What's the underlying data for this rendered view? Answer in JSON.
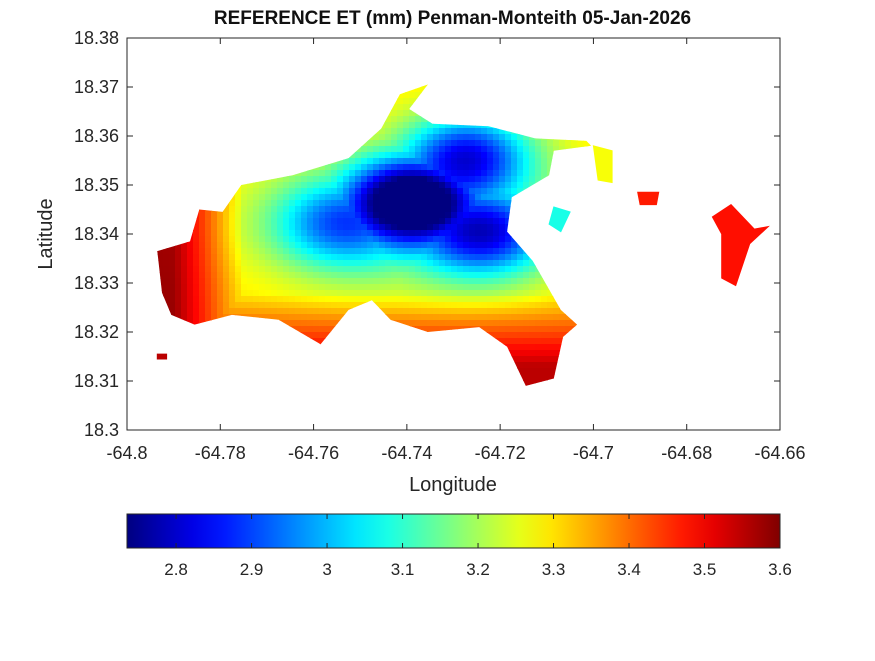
{
  "chart_data": {
    "type": "heatmap",
    "title": "REFERENCE ET (mm) Penman-Monteith 05-Jan-2026",
    "xlabel": "Longitude",
    "ylabel": "Latitude",
    "xlim": [
      -64.8,
      -64.66
    ],
    "ylim": [
      18.3,
      18.38
    ],
    "xticks": [
      "-64.8",
      "-64.78",
      "-64.76",
      "-64.74",
      "-64.72",
      "-64.7",
      "-64.68",
      "-64.66"
    ],
    "yticks": [
      "18.3",
      "18.31",
      "18.32",
      "18.33",
      "18.34",
      "18.35",
      "18.36",
      "18.37",
      "18.38"
    ],
    "colormap": "jet",
    "colorbar": {
      "location": "bottom",
      "range": [
        2.735,
        3.6
      ],
      "ticks": [
        "2.8",
        "2.9",
        "3",
        "3.1",
        "3.2",
        "3.3",
        "3.4",
        "3.5",
        "3.6"
      ]
    },
    "grid": false,
    "region_outline": [
      [
        -64.7935,
        18.3365
      ],
      [
        -64.7865,
        18.3385
      ],
      [
        -64.7845,
        18.345
      ],
      [
        -64.7795,
        18.3445
      ],
      [
        -64.7755,
        18.35
      ],
      [
        -64.7645,
        18.352
      ],
      [
        -64.7525,
        18.3555
      ],
      [
        -64.7455,
        18.3615
      ],
      [
        -64.7415,
        18.3685
      ],
      [
        -64.7355,
        18.3705
      ],
      [
        -64.7395,
        18.3655
      ],
      [
        -64.7345,
        18.3625
      ],
      [
        -64.7225,
        18.362
      ],
      [
        -64.7125,
        18.3595
      ],
      [
        -64.7015,
        18.359
      ],
      [
        -64.7005,
        18.358
      ],
      [
        -64.7085,
        18.357
      ],
      [
        -64.7095,
        18.352
      ],
      [
        -64.7175,
        18.3475
      ],
      [
        -64.7185,
        18.3405
      ],
      [
        -64.713,
        18.3345
      ],
      [
        -64.707,
        18.3245
      ],
      [
        -64.7035,
        18.3215
      ],
      [
        -64.7065,
        18.319
      ],
      [
        -64.7085,
        18.3105
      ],
      [
        -64.7145,
        18.309
      ],
      [
        -64.7185,
        18.317
      ],
      [
        -64.7245,
        18.321
      ],
      [
        -64.7355,
        18.32
      ],
      [
        -64.7435,
        18.3225
      ],
      [
        -64.7475,
        18.3265
      ],
      [
        -64.7525,
        18.3245
      ],
      [
        -64.7585,
        18.3175
      ],
      [
        -64.7675,
        18.3225
      ],
      [
        -64.7775,
        18.3235
      ],
      [
        -64.7855,
        18.3215
      ],
      [
        -64.7905,
        18.3235
      ],
      [
        -64.7925,
        18.328
      ]
    ],
    "islands": [
      {
        "outline": [
          [
            -64.6705,
            18.346
          ],
          [
            -64.6655,
            18.341
          ],
          [
            -64.6625,
            18.3415
          ],
          [
            -64.6665,
            18.338
          ],
          [
            -64.6695,
            18.3295
          ],
          [
            -64.6725,
            18.331
          ],
          [
            -64.6725,
            18.34
          ],
          [
            -64.6745,
            18.3435
          ]
        ],
        "value": 3.48
      },
      {
        "outline": [
          [
            -64.6905,
            18.3485
          ],
          [
            -64.686,
            18.3485
          ],
          [
            -64.6865,
            18.346
          ],
          [
            -64.69,
            18.346
          ]
        ],
        "value": 3.47
      },
      {
        "outline": [
          [
            -64.7,
            18.358
          ],
          [
            -64.696,
            18.357
          ],
          [
            -64.696,
            18.3505
          ],
          [
            -64.699,
            18.351
          ]
        ],
        "value": 3.27
      },
      {
        "outline": [
          [
            -64.7935,
            18.3145
          ],
          [
            -64.7915,
            18.3145
          ],
          [
            -64.7915,
            18.3155
          ],
          [
            -64.7935,
            18.3155
          ]
        ],
        "value": 3.55
      },
      {
        "outline": [
          [
            -64.7085,
            18.3455
          ],
          [
            -64.705,
            18.3445
          ],
          [
            -64.707,
            18.3405
          ],
          [
            -64.7095,
            18.342
          ]
        ],
        "value": 3.08
      }
    ],
    "value_field": {
      "base": 3.3,
      "west_gradient": {
        "lon_from": -64.775,
        "lon_to": -64.79,
        "max": 3.58
      },
      "south_gradient": {
        "lat_from": 18.328,
        "lat_to": 18.313,
        "max": 3.55
      },
      "minima": [
        {
          "lon": -64.739,
          "lat": 18.347,
          "value": 2.76
        },
        {
          "lon": -64.727,
          "lat": 18.356,
          "value": 2.88
        },
        {
          "lon": -64.723,
          "lat": 18.34,
          "value": 2.95
        },
        {
          "lon": -64.755,
          "lat": 18.342,
          "value": 3.05
        }
      ]
    }
  }
}
